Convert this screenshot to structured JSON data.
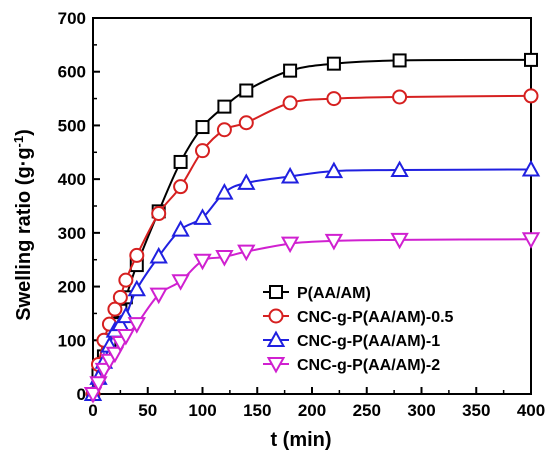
{
  "chart_data": {
    "type": "line",
    "title": "",
    "xlabel": "t (min)",
    "ylabel_main": "Swelling ratio (g·g",
    "ylabel_sup": "-1",
    "ylabel_end": ")",
    "xlim": [
      0,
      400
    ],
    "ylim": [
      0,
      700
    ],
    "xticks": [
      0,
      50,
      100,
      150,
      200,
      250,
      300,
      350,
      400
    ],
    "yticks": [
      0,
      100,
      200,
      300,
      400,
      500,
      600,
      700
    ],
    "grid": false,
    "legend_position": "bottom-right",
    "series": [
      {
        "name": "P(AA/AM)",
        "color": "#000000",
        "marker": "square",
        "x": [
          0,
          5,
          10,
          15,
          20,
          25,
          30,
          40,
          60,
          80,
          100,
          120,
          140,
          180,
          220,
          280,
          400
        ],
        "y": [
          0,
          35,
          70,
          100,
          130,
          155,
          180,
          240,
          340,
          432,
          497,
          535,
          565,
          602,
          615,
          621,
          622
        ]
      },
      {
        "name": "CNC-g-P(AA/AM)-0.5",
        "color": "#d62020",
        "marker": "circle",
        "x": [
          0,
          5,
          10,
          15,
          20,
          25,
          30,
          40,
          60,
          80,
          100,
          120,
          140,
          180,
          220,
          280,
          400
        ],
        "y": [
          0,
          55,
          100,
          130,
          158,
          180,
          212,
          258,
          336,
          386,
          453,
          492,
          505,
          542,
          550,
          553,
          555
        ]
      },
      {
        "name": "CNC-g-P(AA/AM)-1",
        "color": "#2020e0",
        "marker": "triangle-up",
        "x": [
          0,
          5,
          10,
          15,
          20,
          25,
          30,
          40,
          60,
          80,
          100,
          120,
          140,
          180,
          220,
          280,
          400
        ],
        "y": [
          0,
          30,
          60,
          90,
          118,
          130,
          145,
          195,
          256,
          306,
          328,
          375,
          393,
          405,
          415,
          417,
          418
        ]
      },
      {
        "name": "CNC-g-P(AA/AM)-2",
        "color": "#d020d0",
        "marker": "triangle-down",
        "x": [
          0,
          5,
          10,
          15,
          20,
          25,
          30,
          40,
          60,
          80,
          100,
          120,
          140,
          180,
          220,
          280,
          400
        ],
        "y": [
          0,
          20,
          45,
          62,
          75,
          95,
          108,
          130,
          185,
          210,
          248,
          255,
          265,
          280,
          285,
          287,
          288
        ]
      }
    ]
  }
}
